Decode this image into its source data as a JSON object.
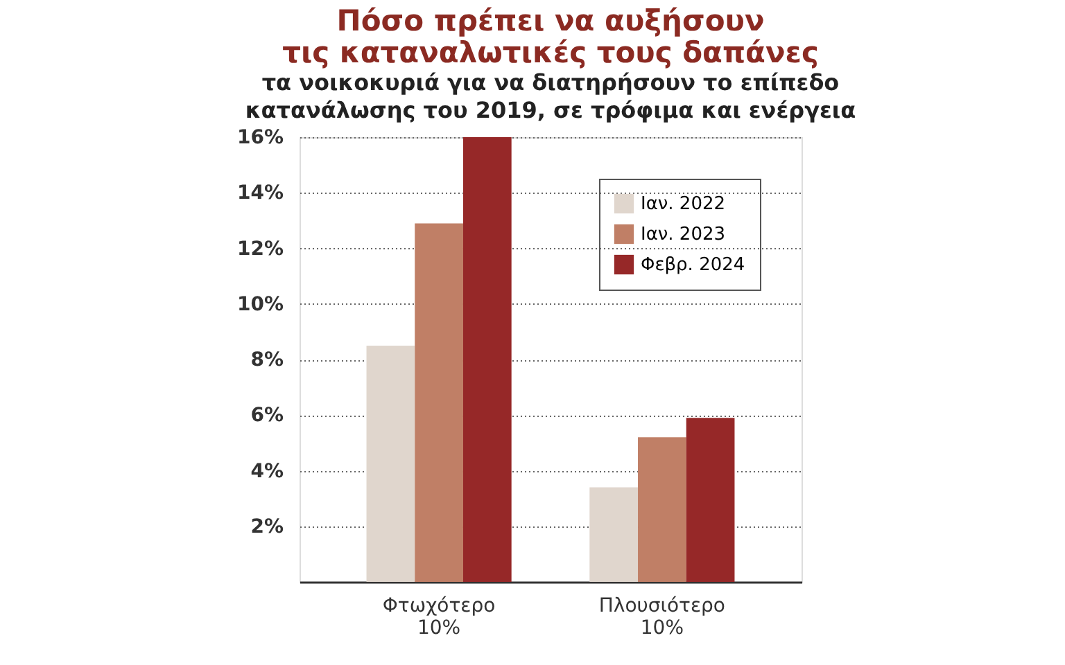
{
  "chart_data": {
    "type": "bar",
    "title": [
      "Πόσο πρέπει να αυξήσουν",
      "τις καταναλωτικές τους δαπάνες"
    ],
    "subtitle": [
      "τα νοικοκυριά για να διατηρήσουν το επίπεδο",
      "κατανάλωσης του 2019, σε τρόφιμα και ενέργεια"
    ],
    "categories": [
      "Φτωχότερο 10%",
      "Πλουσιότερο 10%"
    ],
    "series": [
      {
        "name": "Ιαν. 2022",
        "color": "#e0d6cd",
        "values": [
          8.5,
          3.4
        ]
      },
      {
        "name": "Ιαν. 2023",
        "color": "#c07f66",
        "values": [
          12.9,
          5.2
        ]
      },
      {
        "name": "Φεβρ. 2024",
        "color": "#962828",
        "values": [
          16.0,
          5.9
        ]
      }
    ],
    "ylim": [
      0,
      16
    ],
    "yticks": [
      {
        "value": 0,
        "label": null
      },
      {
        "value": 2,
        "label": "2%"
      },
      {
        "value": 4,
        "label": "4%"
      },
      {
        "value": 6,
        "label": "6%"
      },
      {
        "value": 8,
        "label": "8%"
      },
      {
        "value": 10,
        "label": "10%"
      },
      {
        "value": 12,
        "label": "12%"
      },
      {
        "value": 14,
        "label": "14%"
      },
      {
        "value": 16,
        "label": "16%"
      }
    ],
    "grid": "y",
    "legend": "top right"
  }
}
